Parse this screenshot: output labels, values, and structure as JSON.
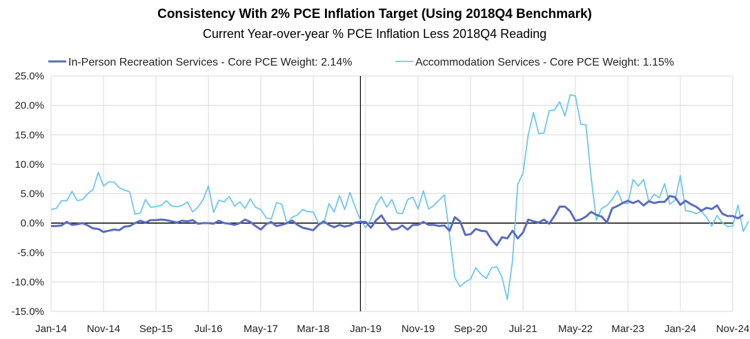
{
  "chart_data": {
    "type": "line",
    "title": "Consistency With 2% PCE Inflation Target (Using 2018Q4 Benchmark)",
    "subtitle": "Current Year-over-year % PCE Inflation Less 2018Q4 Reading",
    "xlabel": "",
    "ylabel": "",
    "ylim": [
      -15,
      25
    ],
    "yticks": [
      25,
      20,
      15,
      10,
      5,
      0,
      -5,
      -10,
      -15
    ],
    "ytick_labels": [
      "25.0%",
      "20.0%",
      "15.0%",
      "10.0%",
      "5.0%",
      "0.0%",
      "-5.0%",
      "-10.0%",
      "-15.0%"
    ],
    "x_tick_labels": [
      "Jan-14",
      "Nov-14",
      "Sep-15",
      "Jul-16",
      "May-17",
      "Mar-18",
      "Jan-19",
      "Nov-19",
      "Sep-20",
      "Jul-21",
      "May-22",
      "Mar-23",
      "Jan-24",
      "Nov-24"
    ],
    "x_tick_month_index": [
      0,
      10,
      20,
      30,
      40,
      50,
      60,
      70,
      80,
      90,
      100,
      110,
      120,
      130
    ],
    "x_range_months": [
      0,
      130
    ],
    "grid": true,
    "legend_position": "top",
    "vertical_marker_month_index": 59,
    "series": [
      {
        "name": "In-Person Recreation Services - Core PCE Weight: 2.14%",
        "color": "#5b6bbf",
        "values": [
          -0.5,
          -0.5,
          -0.4,
          0.2,
          -0.3,
          -0.2,
          0.0,
          -0.4,
          -0.9,
          -1.0,
          -1.5,
          -1.3,
          -1.1,
          -1.2,
          -0.6,
          -0.5,
          0.0,
          0.4,
          0.1,
          0.5,
          0.5,
          0.6,
          0.5,
          0.3,
          0.1,
          0.4,
          0.3,
          0.5,
          -0.1,
          0.0,
          0.0,
          -0.1,
          0.4,
          0.0,
          -0.1,
          -0.3,
          0.0,
          0.6,
          0.2,
          -0.5,
          -1.1,
          -0.2,
          0.2,
          -0.5,
          -0.3,
          0.0,
          0.4,
          -0.3,
          -0.8,
          -1.0,
          -1.2,
          -0.3,
          0.3,
          -0.3,
          -0.7,
          -0.3,
          -0.6,
          -0.4,
          0.1,
          0.2,
          0.2,
          -0.8,
          0.5,
          1.3,
          -0.1,
          -1.1,
          -1.0,
          -0.4,
          -1.1,
          -0.3,
          -0.3,
          0.2,
          -0.3,
          -0.3,
          -0.5,
          -0.4,
          -1.3,
          1.0,
          0.3,
          -2.0,
          -1.9,
          -1.0,
          -1.3,
          -1.4,
          -2.8,
          -3.8,
          -2.4,
          -2.6,
          -1.3,
          -2.6,
          -1.6,
          0.6,
          0.3,
          0.1,
          0.6,
          -0.1,
          1.2,
          2.8,
          2.8,
          2.0,
          0.4,
          0.6,
          1.1,
          1.9,
          1.4,
          1.1,
          0.1,
          2.5,
          2.9,
          3.4,
          3.8,
          3.4,
          3.8,
          3.0,
          3.7,
          3.4,
          3.6,
          3.6,
          4.6,
          4.4,
          3.1,
          3.8,
          3.2,
          2.8,
          2.1,
          2.6,
          2.4,
          3.0,
          1.6,
          1.2,
          1.2,
          0.8,
          1.4
        ]
      },
      {
        "name": "Accommodation Services - Core PCE Weight: 1.15%",
        "color": "#6ec6ea",
        "values": [
          2.3,
          2.5,
          3.8,
          3.8,
          5.4,
          3.8,
          4.0,
          5.0,
          5.7,
          8.6,
          6.3,
          7.0,
          7.0,
          6.0,
          5.6,
          5.3,
          1.5,
          1.7,
          4.0,
          2.7,
          2.8,
          3.0,
          3.8,
          2.9,
          2.8,
          3.0,
          3.6,
          1.9,
          2.7,
          4.0,
          6.3,
          1.8,
          3.9,
          3.6,
          4.5,
          2.9,
          3.6,
          2.5,
          4.1,
          2.7,
          2.3,
          0.9,
          0.7,
          3.5,
          3.2,
          -0.1,
          1.0,
          1.4,
          2.3,
          1.9,
          1.9,
          0.0,
          -0.1,
          3.3,
          1.9,
          4.7,
          2.3,
          5.2,
          2.7,
          0.5,
          -0.8,
          0.7,
          3.2,
          4.5,
          2.7,
          4.0,
          1.7,
          1.6,
          4.0,
          4.4,
          2.4,
          5.5,
          2.4,
          3.0,
          3.9,
          4.8,
          -2.0,
          -9.3,
          -10.8,
          -10.0,
          -9.5,
          -7.6,
          -8.7,
          -9.4,
          -7.6,
          -7.4,
          -9.2,
          -13.0,
          -6.4,
          6.6,
          8.5,
          15.0,
          18.8,
          15.2,
          15.3,
          19.1,
          19.2,
          20.6,
          18.2,
          21.8,
          21.6,
          16.8,
          16.7,
          7.7,
          0.5,
          2.5,
          3.0,
          4.0,
          5.5,
          3.4,
          3.3,
          7.4,
          6.3,
          7.4,
          3.6,
          4.9,
          4.3,
          6.7,
          3.2,
          3.9,
          8.1,
          2.1,
          2.0,
          1.6,
          2.0,
          1.0,
          -0.5,
          1.3,
          0.1,
          -0.6,
          -0.5,
          3.1,
          -1.4,
          0.3
        ]
      }
    ]
  }
}
